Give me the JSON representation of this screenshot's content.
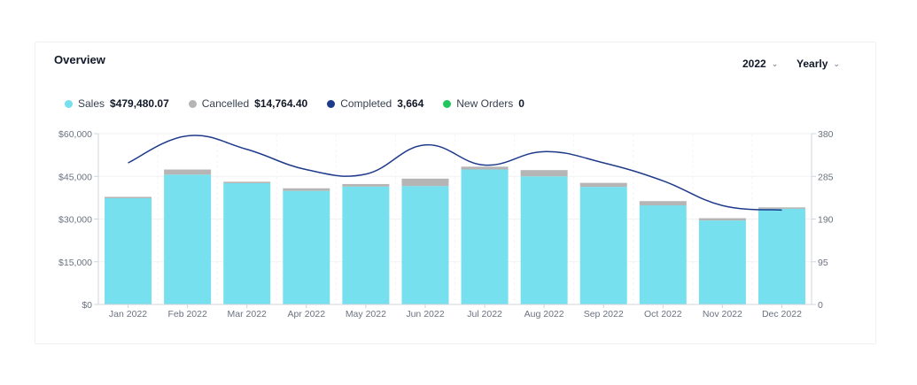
{
  "card": {
    "title": "Overview",
    "year_select": "2022",
    "period_select": "Yearly"
  },
  "legend": [
    {
      "label": "Sales",
      "value": "$479,480.07",
      "color": "#76e0ee"
    },
    {
      "label": "Cancelled",
      "value": "$14,764.40",
      "color": "#b5b5b5"
    },
    {
      "label": "Completed",
      "value": "3,664",
      "color": "#1e3a8a"
    },
    {
      "label": "New Orders",
      "value": "0",
      "color": "#22c55e"
    }
  ],
  "chart_data": {
    "type": "bar",
    "categories": [
      "Jan 2022",
      "Feb 2022",
      "Mar 2022",
      "Apr 2022",
      "May 2022",
      "Jun 2022",
      "Jul 2022",
      "Aug 2022",
      "Sep 2022",
      "Oct 2022",
      "Nov 2022",
      "Dec 2022"
    ],
    "series": [
      {
        "name": "Sales",
        "type": "bar",
        "axis": "left",
        "color": "#76e0ee",
        "values": [
          37300,
          45600,
          42600,
          39900,
          41400,
          41600,
          47400,
          45000,
          41300,
          34800,
          29500,
          33600
        ]
      },
      {
        "name": "Cancelled",
        "type": "bar",
        "stacked": true,
        "axis": "left",
        "color": "#b5b5b5",
        "values": [
          500,
          1800,
          500,
          900,
          900,
          2600,
          1000,
          2200,
          1400,
          1500,
          800,
          500
        ]
      },
      {
        "name": "Completed",
        "type": "line",
        "axis": "right",
        "color": "#1e3a8a",
        "values": [
          315,
          375,
          345,
          300,
          290,
          355,
          310,
          340,
          315,
          275,
          220,
          210
        ]
      }
    ],
    "y_left": {
      "min": 0,
      "max": 60000,
      "ticks": [
        "$0",
        "$15,000",
        "$30,000",
        "$45,000",
        "$60,000"
      ],
      "tick_values": [
        0,
        15000,
        30000,
        45000,
        60000
      ]
    },
    "y_right": {
      "min": 0,
      "max": 380,
      "ticks": [
        "0",
        "95",
        "190",
        "285",
        "380"
      ],
      "tick_values": [
        0,
        95,
        190,
        285,
        380
      ]
    },
    "grid": true,
    "legend_position": "top-left"
  }
}
